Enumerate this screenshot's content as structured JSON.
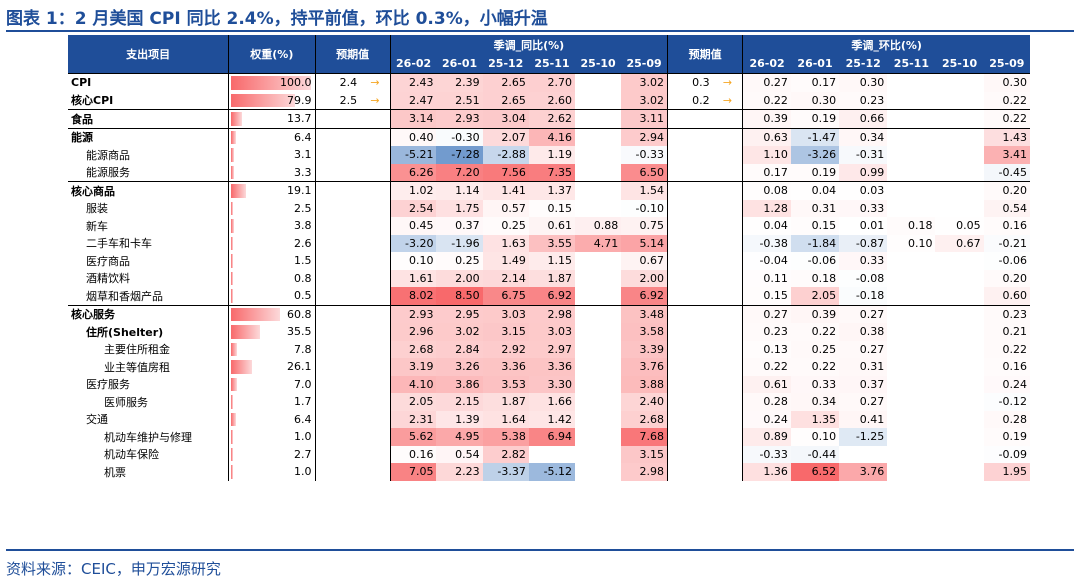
{
  "title": "图表 1：2 月美国 CPI 同比 2.4%，持平前值，环比 0.3%，小幅升温",
  "source": "资料来源：CEIC，申万宏源研究",
  "colors": {
    "brand": "#1f4e99",
    "neg": "#5a8ac6",
    "pos": "#f8696b",
    "bar": "#f8696b"
  },
  "header": {
    "item": "支出项目",
    "weight": "权重(%)",
    "forecast_yoy": "预期值",
    "yoy_group": "季调_同比(%)",
    "forecast_mom": "预期值",
    "mom_group": "季调_环比(%)",
    "periods": [
      "26-02",
      "26-01",
      "25-12",
      "25-11",
      "25-10",
      "25-09"
    ]
  },
  "chart_data": {
    "type": "table",
    "title": "图表 1：2 月美国 CPI 同比 2.4%，持平前值，环比 0.3%，小幅升温",
    "columns": [
      "支出项目",
      "权重(%)",
      "预期值",
      "26-02",
      "26-01",
      "25-12",
      "25-11",
      "25-10",
      "25-09",
      "预期值",
      "26-02",
      "26-01",
      "25-12",
      "25-11",
      "25-10",
      "25-09"
    ],
    "rows": [
      {
        "name": "CPI",
        "level": 0,
        "bold": true,
        "group": true,
        "weight": "100.0",
        "exp_yoy": "2.4",
        "yoy": [
          "2.43",
          "2.39",
          "2.65",
          "2.70",
          "",
          "3.02"
        ],
        "exp_mom": "0.3",
        "mom": [
          "0.27",
          "0.17",
          "0.30",
          "",
          "",
          "0.30"
        ]
      },
      {
        "name": "核心CPI",
        "level": 0,
        "bold": true,
        "group": false,
        "weight": "79.9",
        "exp_yoy": "2.5",
        "yoy": [
          "2.47",
          "2.51",
          "2.65",
          "2.60",
          "",
          "3.02"
        ],
        "exp_mom": "0.2",
        "mom": [
          "0.22",
          "0.30",
          "0.23",
          "",
          "",
          "0.22"
        ]
      },
      {
        "name": "食品",
        "level": 0,
        "bold": true,
        "group": true,
        "weight": "13.7",
        "exp_yoy": "",
        "yoy": [
          "3.14",
          "2.93",
          "3.04",
          "2.62",
          "",
          "3.11"
        ],
        "exp_mom": "",
        "mom": [
          "0.39",
          "0.19",
          "0.66",
          "",
          "",
          "0.22"
        ]
      },
      {
        "name": "能源",
        "level": 0,
        "bold": true,
        "group": true,
        "weight": "6.4",
        "exp_yoy": "",
        "yoy": [
          "0.40",
          "-0.30",
          "2.07",
          "4.16",
          "",
          "2.94"
        ],
        "exp_mom": "",
        "mom": [
          "0.63",
          "-1.47",
          "0.34",
          "",
          "",
          "1.43"
        ]
      },
      {
        "name": "能源商品",
        "level": 1,
        "bold": false,
        "group": false,
        "weight": "3.1",
        "exp_yoy": "",
        "yoy": [
          "-5.21",
          "-7.28",
          "-2.88",
          "1.19",
          "",
          "-0.33"
        ],
        "exp_mom": "",
        "mom": [
          "1.10",
          "-3.26",
          "-0.31",
          "",
          "",
          "3.41"
        ]
      },
      {
        "name": "能源服务",
        "level": 1,
        "bold": false,
        "group": false,
        "weight": "3.3",
        "exp_yoy": "",
        "yoy": [
          "6.26",
          "7.20",
          "7.56",
          "7.35",
          "",
          "6.50"
        ],
        "exp_mom": "",
        "mom": [
          "0.17",
          "0.19",
          "0.99",
          "",
          "",
          "-0.45"
        ]
      },
      {
        "name": "核心商品",
        "level": 0,
        "bold": true,
        "group": true,
        "weight": "19.1",
        "exp_yoy": "",
        "yoy": [
          "1.02",
          "1.14",
          "1.41",
          "1.37",
          "",
          "1.54"
        ],
        "exp_mom": "",
        "mom": [
          "0.08",
          "0.04",
          "0.03",
          "",
          "",
          "0.20"
        ]
      },
      {
        "name": "服装",
        "level": 1,
        "bold": false,
        "group": false,
        "weight": "2.5",
        "exp_yoy": "",
        "yoy": [
          "2.54",
          "1.75",
          "0.57",
          "0.15",
          "",
          "-0.10"
        ],
        "exp_mom": "",
        "mom": [
          "1.28",
          "0.31",
          "0.33",
          "",
          "",
          "0.54"
        ]
      },
      {
        "name": "新车",
        "level": 1,
        "bold": false,
        "group": false,
        "weight": "3.8",
        "exp_yoy": "",
        "yoy": [
          "0.45",
          "0.37",
          "0.25",
          "0.61",
          "0.88",
          "0.75"
        ],
        "exp_mom": "",
        "mom": [
          "0.04",
          "0.15",
          "0.01",
          "0.18",
          "0.05",
          "0.16"
        ]
      },
      {
        "name": "二手车和卡车",
        "level": 1,
        "bold": false,
        "group": false,
        "weight": "2.6",
        "exp_yoy": "",
        "yoy": [
          "-3.20",
          "-1.96",
          "1.63",
          "3.55",
          "4.71",
          "5.14"
        ],
        "exp_mom": "",
        "mom": [
          "-0.38",
          "-1.84",
          "-0.87",
          "0.10",
          "0.67",
          "-0.21"
        ]
      },
      {
        "name": "医疗商品",
        "level": 1,
        "bold": false,
        "group": false,
        "weight": "1.5",
        "exp_yoy": "",
        "yoy": [
          "0.10",
          "0.25",
          "1.49",
          "1.15",
          "",
          "0.67"
        ],
        "exp_mom": "",
        "mom": [
          "-0.04",
          "-0.06",
          "0.33",
          "",
          "",
          "-0.06"
        ]
      },
      {
        "name": "酒精饮料",
        "level": 1,
        "bold": false,
        "group": false,
        "weight": "0.8",
        "exp_yoy": "",
        "yoy": [
          "1.61",
          "2.00",
          "2.14",
          "1.87",
          "",
          "2.00"
        ],
        "exp_mom": "",
        "mom": [
          "0.11",
          "0.18",
          "-0.08",
          "",
          "",
          "0.20"
        ]
      },
      {
        "name": "烟草和香烟产品",
        "level": 1,
        "bold": false,
        "group": false,
        "weight": "0.5",
        "exp_yoy": "",
        "yoy": [
          "8.02",
          "8.50",
          "6.75",
          "6.92",
          "",
          "6.92"
        ],
        "exp_mom": "",
        "mom": [
          "0.15",
          "2.05",
          "-0.18",
          "",
          "",
          "0.60"
        ]
      },
      {
        "name": "核心服务",
        "level": 0,
        "bold": true,
        "group": true,
        "weight": "60.8",
        "exp_yoy": "",
        "yoy": [
          "2.93",
          "2.95",
          "3.03",
          "2.98",
          "",
          "3.48"
        ],
        "exp_mom": "",
        "mom": [
          "0.27",
          "0.39",
          "0.27",
          "",
          "",
          "0.23"
        ]
      },
      {
        "name": "住所(Shelter)",
        "level": 1,
        "bold": true,
        "group": false,
        "weight": "35.5",
        "exp_yoy": "",
        "yoy": [
          "2.96",
          "3.02",
          "3.15",
          "3.03",
          "",
          "3.58"
        ],
        "exp_mom": "",
        "mom": [
          "0.23",
          "0.22",
          "0.38",
          "",
          "",
          "0.21"
        ]
      },
      {
        "name": "主要住所租金",
        "level": 2,
        "bold": false,
        "group": false,
        "weight": "7.8",
        "exp_yoy": "",
        "yoy": [
          "2.68",
          "2.84",
          "2.92",
          "2.97",
          "",
          "3.39"
        ],
        "exp_mom": "",
        "mom": [
          "0.13",
          "0.25",
          "0.27",
          "",
          "",
          "0.22"
        ]
      },
      {
        "name": "业主等值房租",
        "level": 2,
        "bold": false,
        "group": false,
        "weight": "26.1",
        "exp_yoy": "",
        "yoy": [
          "3.19",
          "3.26",
          "3.36",
          "3.36",
          "",
          "3.76"
        ],
        "exp_mom": "",
        "mom": [
          "0.22",
          "0.22",
          "0.31",
          "",
          "",
          "0.16"
        ]
      },
      {
        "name": "医疗服务",
        "level": 1,
        "bold": false,
        "group": false,
        "weight": "7.0",
        "exp_yoy": "",
        "yoy": [
          "4.10",
          "3.86",
          "3.53",
          "3.30",
          "",
          "3.88"
        ],
        "exp_mom": "",
        "mom": [
          "0.61",
          "0.33",
          "0.37",
          "",
          "",
          "0.24"
        ]
      },
      {
        "name": "医师服务",
        "level": 2,
        "bold": false,
        "group": false,
        "weight": "1.7",
        "exp_yoy": "",
        "yoy": [
          "2.05",
          "2.15",
          "1.87",
          "1.66",
          "",
          "2.40"
        ],
        "exp_mom": "",
        "mom": [
          "0.28",
          "0.34",
          "0.27",
          "",
          "",
          "-0.12"
        ]
      },
      {
        "name": "交通",
        "level": 1,
        "bold": false,
        "group": false,
        "weight": "6.4",
        "exp_yoy": "",
        "yoy": [
          "2.31",
          "1.39",
          "1.64",
          "1.42",
          "",
          "2.68"
        ],
        "exp_mom": "",
        "mom": [
          "0.24",
          "1.35",
          "0.41",
          "",
          "",
          "0.28"
        ]
      },
      {
        "name": "机动车维护与修理",
        "level": 2,
        "bold": false,
        "group": false,
        "weight": "1.0",
        "exp_yoy": "",
        "yoy": [
          "5.62",
          "4.95",
          "5.38",
          "6.94",
          "",
          "7.68"
        ],
        "exp_mom": "",
        "mom": [
          "0.89",
          "0.10",
          "-1.25",
          "",
          "",
          "0.19"
        ]
      },
      {
        "name": "机动车保险",
        "level": 2,
        "bold": false,
        "group": false,
        "weight": "2.7",
        "exp_yoy": "",
        "yoy": [
          "0.16",
          "0.54",
          "2.82",
          "",
          "",
          "3.15"
        ],
        "exp_mom": "",
        "mom": [
          "-0.33",
          "-0.44",
          "",
          "",
          "",
          "-0.09"
        ]
      },
      {
        "name": "机票",
        "level": 2,
        "bold": false,
        "group": false,
        "weight": "1.0",
        "exp_yoy": "",
        "yoy": [
          "7.05",
          "2.23",
          "-3.37",
          "-5.12",
          "",
          "2.98"
        ],
        "exp_mom": "",
        "mom": [
          "1.36",
          "6.52",
          "3.76",
          "",
          "",
          "1.95"
        ]
      }
    ]
  }
}
